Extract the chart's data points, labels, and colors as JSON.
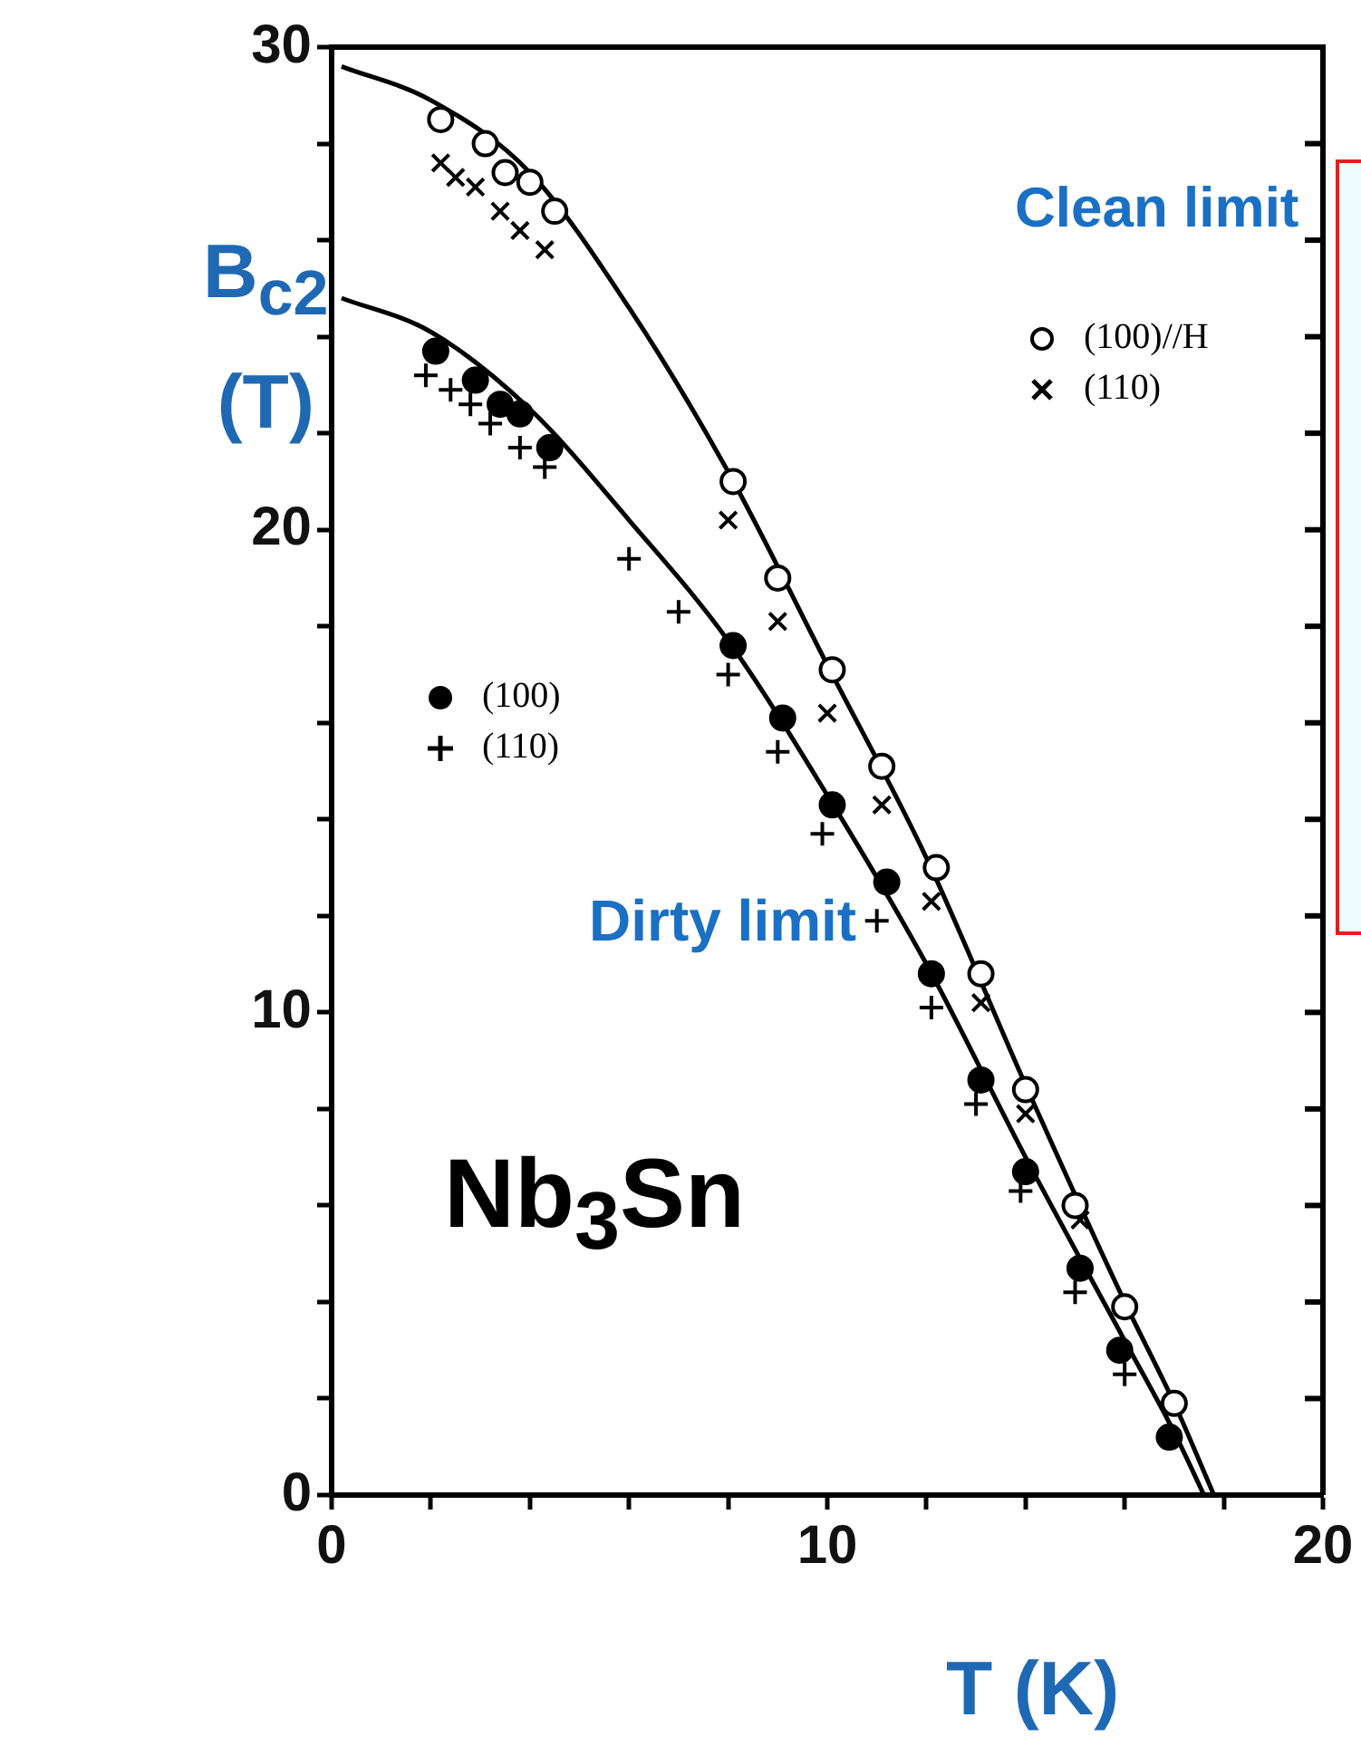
{
  "chart_data": {
    "type": "scatter",
    "xlabel": "T (K)",
    "ylabel": "B$_{c2}$ (T)",
    "xlim": [
      0,
      20
    ],
    "ylim": [
      0,
      30
    ],
    "xticks": [
      0,
      {
        "value": 2,
        "label": null
      },
      {
        "value": 4,
        "label": null
      },
      {
        "value": 6,
        "label": null
      },
      {
        "value": 8,
        "label": null
      },
      10,
      {
        "value": 12,
        "label": null
      },
      {
        "value": 14,
        "label": null
      },
      {
        "value": 16,
        "label": null
      },
      {
        "value": 18,
        "label": null
      },
      20
    ],
    "yticks": [
      0,
      {
        "value": 2,
        "label": null
      },
      {
        "value": 4,
        "label": null
      },
      {
        "value": 6,
        "label": null
      },
      {
        "value": 8,
        "label": null
      },
      10,
      {
        "value": 12,
        "label": null
      },
      {
        "value": 14,
        "label": null
      },
      {
        "value": 16,
        "label": null
      },
      {
        "value": 18,
        "label": null
      },
      20,
      {
        "value": 22,
        "label": null
      },
      {
        "value": 24,
        "label": null
      },
      {
        "value": 26,
        "label": null
      },
      {
        "value": 28,
        "label": null
      },
      30
    ],
    "grid": false,
    "legend": "top right",
    "annotations": [
      "Clean limit",
      "Dirty limit",
      "Nb$_{3}$Sn"
    ],
    "series": [
      {
        "name": "(100)//H",
        "marker": "circle",
        "color": "#000000",
        "x": [
          2.2,
          3.1,
          3.5,
          4.0,
          4.5,
          8.1,
          9.0,
          10.1,
          11.1,
          12.2,
          13.1,
          14.0,
          15.0,
          16.0,
          17.0
        ],
        "values": [
          28.5,
          28.0,
          27.4,
          27.2,
          26.6,
          21.0,
          19.0,
          17.1,
          15.1,
          13.0,
          10.8,
          8.4,
          6.0,
          3.9,
          1.9
        ]
      },
      {
        "name": "(110)",
        "marker": "cross",
        "color": "#000000",
        "x": [
          2.2,
          2.5,
          2.9,
          3.4,
          3.8,
          4.3,
          8.0,
          9.0,
          10.0,
          11.1,
          12.1,
          13.1,
          14.0,
          15.1
        ],
        "values": [
          27.6,
          27.3,
          27.1,
          26.6,
          26.2,
          25.8,
          20.2,
          18.1,
          16.2,
          14.3,
          12.3,
          10.2,
          7.9,
          5.7
        ]
      },
      {
        "name": "(100)",
        "marker": "circle",
        "color": "#000000",
        "x": [
          2.1,
          2.9,
          3.4,
          3.8,
          4.4,
          8.1,
          9.1,
          10.1,
          11.2,
          12.1,
          13.1,
          14.0,
          15.1,
          15.9,
          16.9
        ],
        "values": [
          23.7,
          23.1,
          22.6,
          22.4,
          21.7,
          17.6,
          16.1,
          14.3,
          12.7,
          10.8,
          8.6,
          6.7,
          4.7,
          3.0,
          1.2
        ]
      },
      {
        "name": "(110)",
        "marker": "plus",
        "color": "#000000",
        "x": [
          1.9,
          2.4,
          2.8,
          3.2,
          3.8,
          4.3,
          6.0,
          7.0,
          8.0,
          9.0,
          9.9,
          11.0,
          12.1,
          13.0,
          13.9,
          15.0,
          16.0
        ],
        "values": [
          23.2,
          22.9,
          22.6,
          22.2,
          21.7,
          21.3,
          19.4,
          18.3,
          17.0,
          15.4,
          13.7,
          11.9,
          10.1,
          8.1,
          6.3,
          4.2,
          2.5
        ]
      },
      {
        "type": "line",
        "marker": "none",
        "color": "#000000",
        "x": [
          0.2,
          2,
          4,
          6,
          8,
          10,
          12,
          14,
          16,
          17,
          17.8
        ],
        "values": [
          29.6,
          28.9,
          27.4,
          24.6,
          21.2,
          17.2,
          13.2,
          8.5,
          4.0,
          1.9,
          0
        ]
      },
      {
        "type": "line",
        "marker": "none",
        "color": "#000000",
        "x": [
          0.2,
          2,
          4,
          6,
          8,
          10,
          12,
          14,
          16,
          17,
          17.6
        ],
        "values": [
          24.8,
          24.1,
          22.5,
          20.2,
          17.7,
          14.5,
          11.0,
          7.0,
          3.2,
          1.3,
          0
        ]
      }
    ]
  }
}
